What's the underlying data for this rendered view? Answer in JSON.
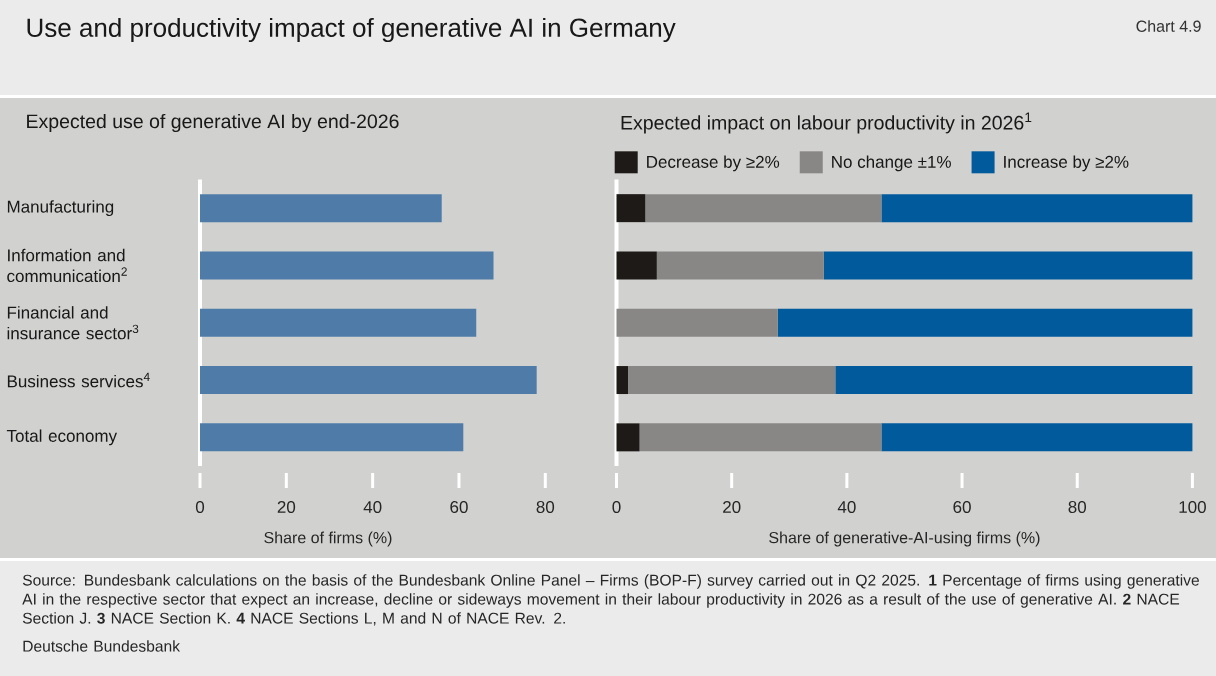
{
  "chart_data": [
    {
      "type": "bar",
      "orientation": "horizontal",
      "title": "Use and productivity impact of generative AI in Germany",
      "subtitle": "Expected use of generative AI by end-2026",
      "xlabel": "Share of firms (%)",
      "categories": [
        "Manufacturing",
        "Information and communication$^{2}$",
        "Financial and insurance sector$^{3}$",
        "Business services$^{4}$",
        "Total economy"
      ],
      "values": [
        56,
        68,
        64,
        78,
        61
      ],
      "color": "#4e7ba8",
      "xlim": [
        0,
        80
      ],
      "xticks": [
        0,
        20,
        40,
        60,
        80
      ],
      "annotations": [
        "Chart 4.9",
        "Source: Bundesbank calculations on the basis of the Bundesbank Online Panel – Firms (BOP-F) survey carried out in Q2 2025. **1** Percentage of firms using generative AI in the respective sector that expect an increase, decline or sideways movement in their labour productivity in 2026 as a result of the use of generative AI. **2** NACE Section J. **3** NACE Section K. **4** NACE Sections L, M and N of NACE Rev. 2.",
        "Deutsche Bundesbank"
      ]
    },
    {
      "type": "bar",
      "orientation": "horizontal",
      "stacked": true,
      "title": "Expected impact on labour productivity in 2026$^{1}$",
      "xlabel": "Share of generative-AI-using firms (%)",
      "series": [
        {
          "name": "Decrease by ≥2%",
          "color": "#1e1a18",
          "values": [
            5,
            7,
            0,
            2,
            4
          ]
        },
        {
          "name": "No change ±1%",
          "color": "#888786",
          "values": [
            41,
            29,
            28,
            36,
            42
          ]
        },
        {
          "name": "Increase by ≥2%",
          "color": "#005a9c",
          "values": [
            54,
            64,
            72,
            62,
            54
          ]
        }
      ],
      "xlim": [
        0,
        100
      ],
      "xticks": [
        0,
        20,
        40,
        60,
        80,
        100
      ],
      "legend": "top",
      "tick_labels": "x"
    }
  ]
}
